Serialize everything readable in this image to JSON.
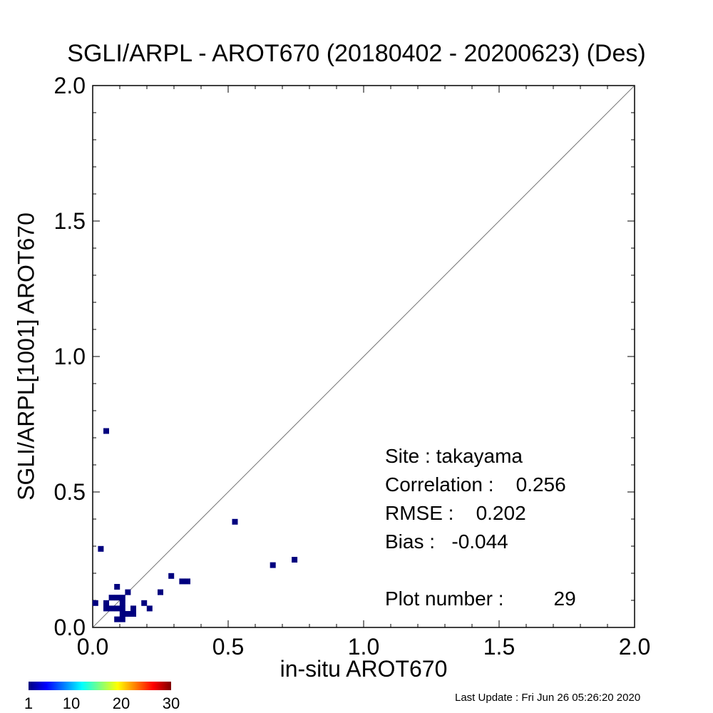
{
  "chart_data": {
    "type": "scatter",
    "title": "SGLI/ARPL - AROT670 (20180402 - 20200623) (Des)",
    "xlabel": "in-situ AROT670",
    "ylabel": "SGLI/ARPL[1001]    AROT670",
    "xlim": [
      0.0,
      2.0
    ],
    "ylim": [
      0.0,
      2.0
    ],
    "xticks": [
      "0.0",
      "0.5",
      "1.0",
      "1.5",
      "2.0"
    ],
    "yticks": [
      "0.0",
      "0.5",
      "1.0",
      "1.5",
      "2.0"
    ],
    "one_to_one_line": true,
    "grid": false,
    "points": [
      {
        "x": 0.05,
        "y": 0.725
      },
      {
        "x": 0.03,
        "y": 0.29
      },
      {
        "x": 0.525,
        "y": 0.39
      },
      {
        "x": 0.665,
        "y": 0.23
      },
      {
        "x": 0.745,
        "y": 0.25
      },
      {
        "x": 0.29,
        "y": 0.19
      },
      {
        "x": 0.33,
        "y": 0.17
      },
      {
        "x": 0.35,
        "y": 0.17
      },
      {
        "x": 0.25,
        "y": 0.13
      },
      {
        "x": 0.19,
        "y": 0.09
      },
      {
        "x": 0.21,
        "y": 0.07
      },
      {
        "x": 0.15,
        "y": 0.07
      },
      {
        "x": 0.15,
        "y": 0.05
      },
      {
        "x": 0.13,
        "y": 0.13
      },
      {
        "x": 0.09,
        "y": 0.15
      },
      {
        "x": 0.07,
        "y": 0.11
      },
      {
        "x": 0.09,
        "y": 0.11
      },
      {
        "x": 0.11,
        "y": 0.11
      },
      {
        "x": 0.11,
        "y": 0.09
      },
      {
        "x": 0.11,
        "y": 0.07
      },
      {
        "x": 0.11,
        "y": 0.05
      },
      {
        "x": 0.11,
        "y": 0.03
      },
      {
        "x": 0.09,
        "y": 0.03
      },
      {
        "x": 0.13,
        "y": 0.05
      },
      {
        "x": 0.07,
        "y": 0.07
      },
      {
        "x": 0.05,
        "y": 0.07
      },
      {
        "x": 0.05,
        "y": 0.09
      },
      {
        "x": 0.01,
        "y": 0.09
      },
      {
        "x": 0.09,
        "y": 0.07
      }
    ],
    "point_color": "#00007f",
    "colorbar": {
      "ticks": [
        "1",
        "10",
        "20",
        "30"
      ],
      "tick_values": [
        1,
        10,
        20,
        30
      ],
      "range": [
        0,
        30
      ],
      "colors": [
        "#00007f",
        "#0000ff",
        "#007fff",
        "#00ffff",
        "#7fff7f",
        "#ffff00",
        "#ff7f00",
        "#ff0000",
        "#7f0000"
      ]
    }
  },
  "stats": {
    "site": "Site : takayama",
    "correlation": "Correlation :    0.256",
    "rmse": "RMSE :    0.202",
    "bias": "Bias :   -0.044",
    "plot_number": "Plot number :         29"
  },
  "last_update": "Last Update : Fri Jun 26 05:26:20 2020"
}
